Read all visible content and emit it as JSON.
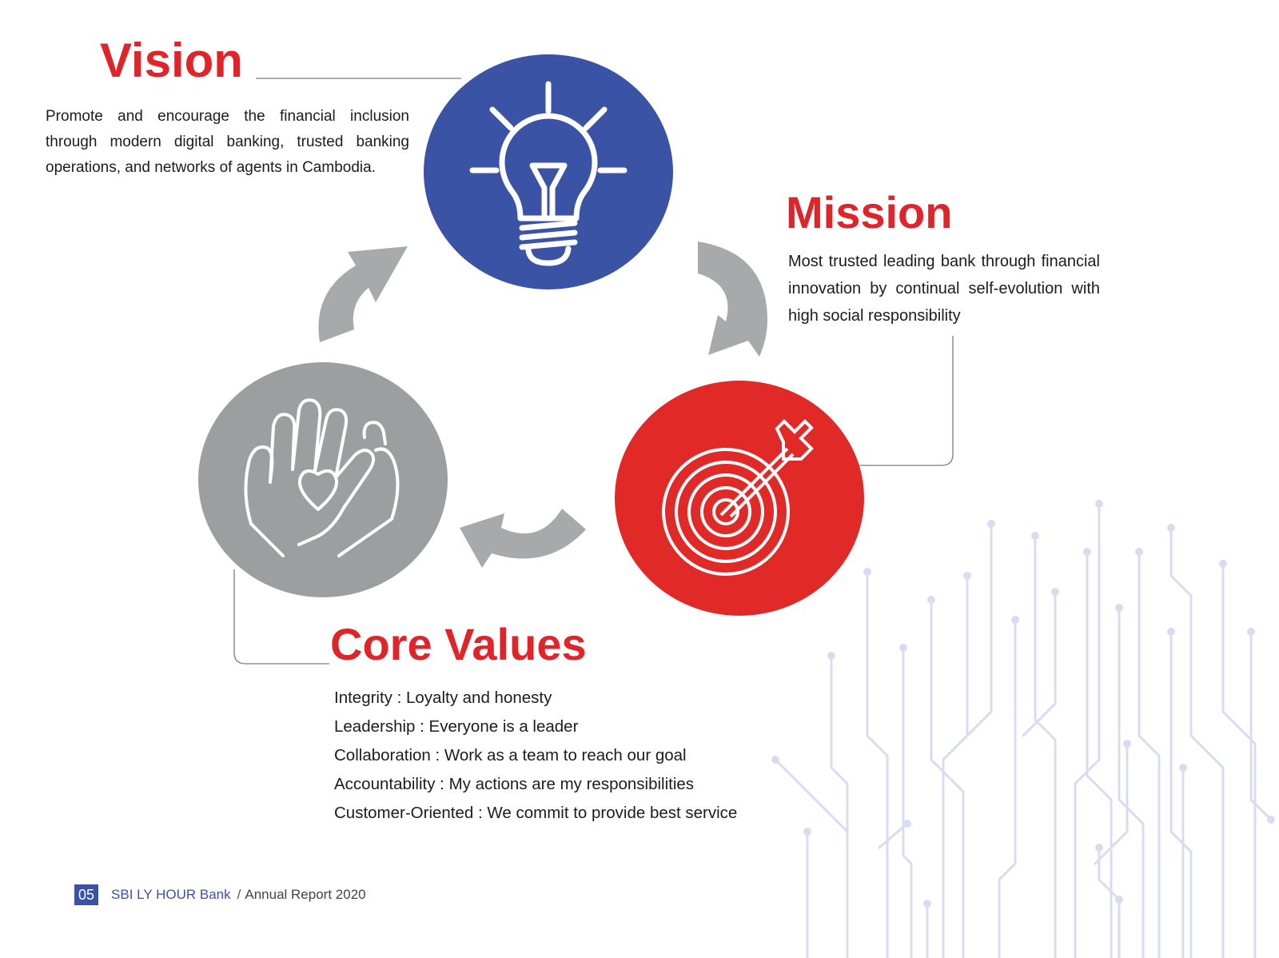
{
  "vision": {
    "title": "Vision",
    "text": "Promote and encourage the financial inclusion through modern digital banking, trusted banking operations, and networks of agents in Cambodia."
  },
  "mission": {
    "title": "Mission",
    "text": "Most trusted leading bank through financial innovation by continual self-evolution with high social responsibility"
  },
  "core_values": {
    "title": "Core Values",
    "items": [
      "Integrity : Loyalty and honesty",
      "Leadership : Everyone is a leader",
      "Collaboration : Work as a team to reach our goal",
      "Accountability : My actions are my responsibilities",
      "Customer-Oriented : We commit to provide best service"
    ]
  },
  "icons": {
    "vision": "lightbulb-icon",
    "mission": "target-icon",
    "core_values": "hands-heart-icon",
    "cycle": "curved-arrow-icon"
  },
  "colors": {
    "accent_red": "#e0242a",
    "vision_blue": "#3b53a4",
    "mission_red": "#e12a28",
    "core_gray": "#9d9ea0",
    "arrow_gray": "#a8a9ab",
    "circuit_lavender": "#d9dcf0"
  },
  "footer": {
    "page_number": "05",
    "bank_name": "SBI LY HOUR Bank",
    "separator": "/",
    "report": "Annual Report 2020"
  }
}
